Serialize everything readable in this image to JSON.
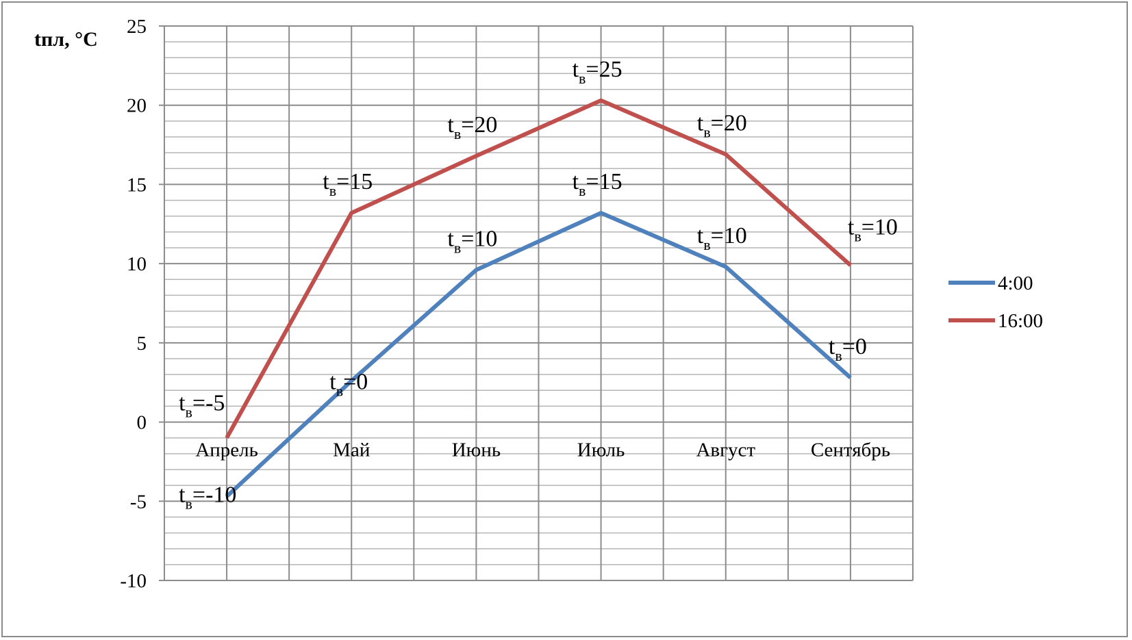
{
  "chart_data": {
    "type": "line",
    "title": "",
    "xlabel": "",
    "ylabel": "tпл, °C",
    "ylim": [
      -10,
      25
    ],
    "y_ticks": [
      -10,
      -5,
      0,
      5,
      10,
      15,
      20,
      25
    ],
    "y_minor_step": 1,
    "grid": true,
    "legend_position": "right",
    "categories": [
      "Апрель",
      "Май",
      "Июнь",
      "Июль",
      "Август",
      "Сентябрь"
    ],
    "series": [
      {
        "name": "4:00",
        "color": "#4F81BD",
        "values": [
          -4.7,
          2.6,
          9.6,
          13.2,
          9.8,
          2.8
        ],
        "annotations": [
          {
            "base": "t",
            "sub": "в",
            "rest": "=-10"
          },
          {
            "base": "t",
            "sub": "в",
            "rest": "=0"
          },
          {
            "base": "t",
            "sub": "в",
            "rest": "=10"
          },
          {
            "base": "t",
            "sub": "в",
            "rest": "=15"
          },
          {
            "base": "t",
            "sub": "в",
            "rest": "=10"
          },
          {
            "base": "t",
            "sub": "в",
            "rest": "=0"
          }
        ]
      },
      {
        "name": "16:00",
        "color": "#C0504D",
        "values": [
          -1.0,
          13.2,
          16.8,
          20.3,
          16.9,
          9.9
        ],
        "annotations": [
          {
            "base": "t",
            "sub": "в",
            "rest": "=-5"
          },
          {
            "base": "t",
            "sub": "в",
            "rest": "=15"
          },
          {
            "base": "t",
            "sub": "в",
            "rest": "=20"
          },
          {
            "base": "t",
            "sub": "в",
            "rest": "=25"
          },
          {
            "base": "t",
            "sub": "в",
            "rest": "=20"
          },
          {
            "base": "t",
            "sub": "в",
            "rest": "=10"
          }
        ]
      }
    ]
  }
}
